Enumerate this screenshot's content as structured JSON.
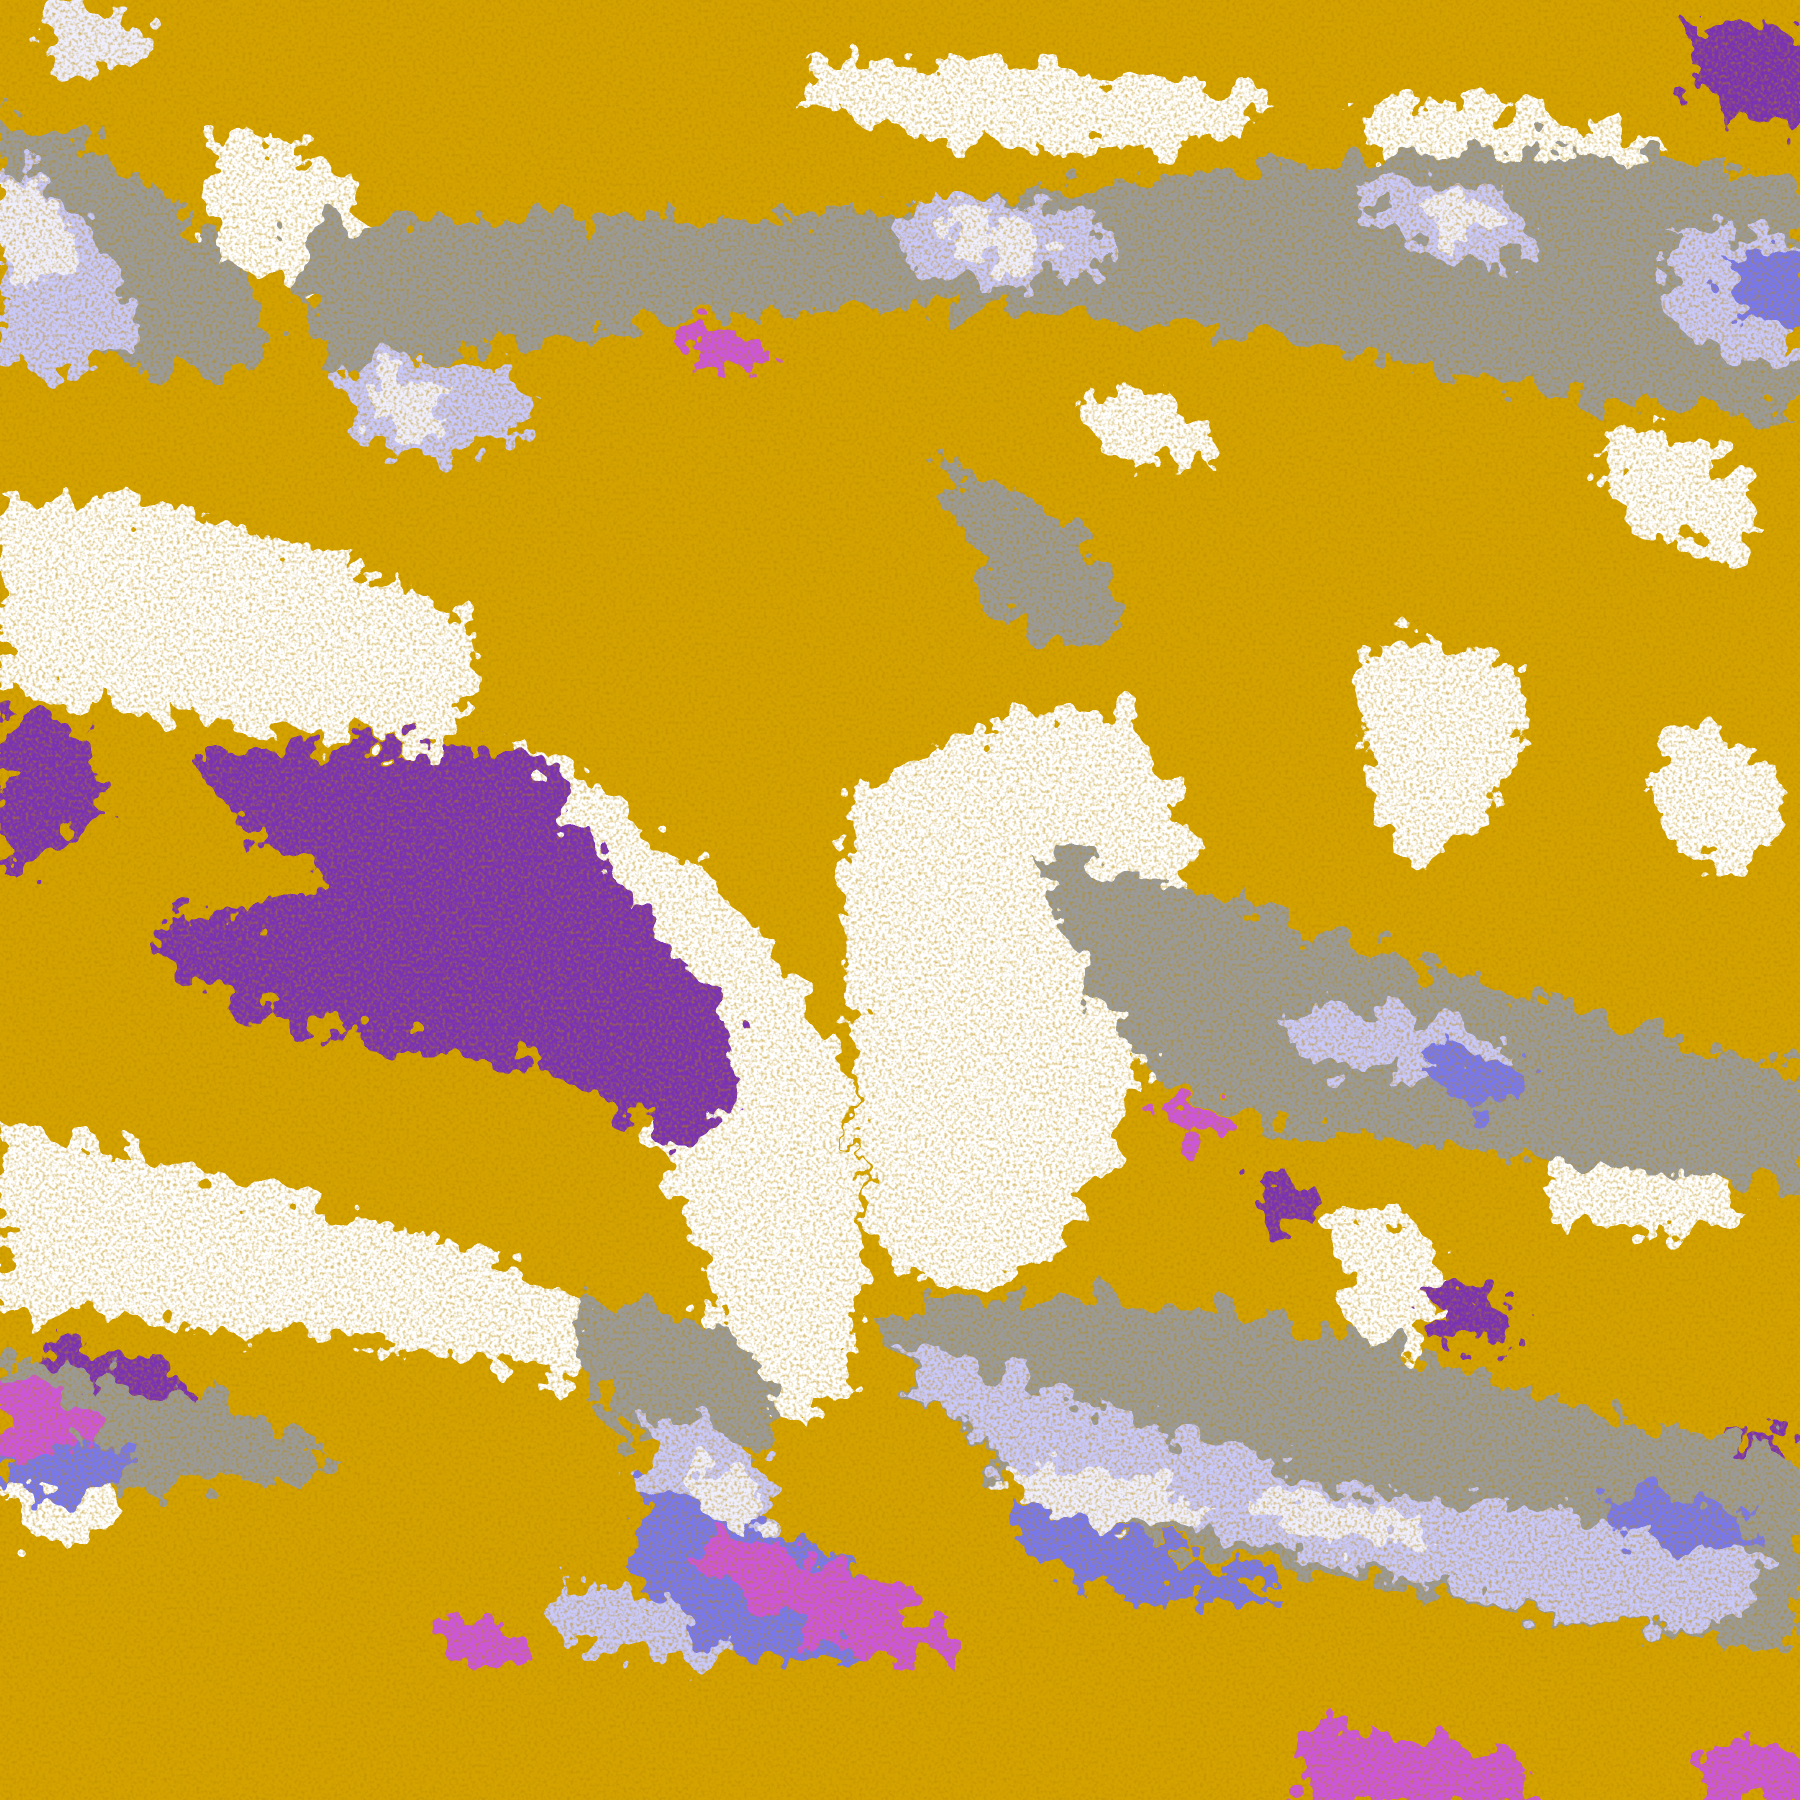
{
  "map": {
    "kind": "satellite cloud classification image",
    "palette": {
      "clear": "#ffffff",
      "low_cloud": "#d4a300",
      "low_cloud_dark": "#b88a00",
      "mid_cloud": "#9a9a9a",
      "high_thin": "#c8c8fa",
      "high_thick": "#7878ee",
      "very_high": "#eeeeff",
      "deep_convective": "#cc55dd",
      "stratus": "#7a32b4"
    }
  }
}
